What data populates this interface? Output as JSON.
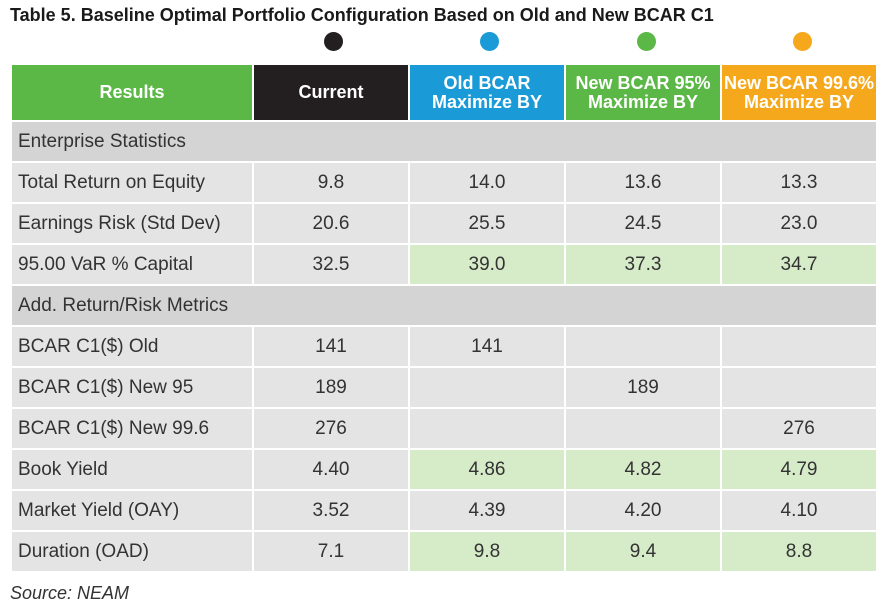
{
  "title": "Table 5. Baseline Optimal Portfolio Configuration Based on Old and New BCAR C1",
  "columns": [
    {
      "lines": [
        "Results"
      ],
      "color": "#5bb847"
    },
    {
      "lines": [
        "Current"
      ],
      "color": "#231f20",
      "dot": "#231f20"
    },
    {
      "lines": [
        "Old BCAR",
        "Maximize BY"
      ],
      "color": "#1a9ad6",
      "dot": "#1a9ad6"
    },
    {
      "lines": [
        "New BCAR 95%",
        "Maximize BY"
      ],
      "color": "#5bb847",
      "dot": "#5bb847"
    },
    {
      "lines": [
        "New BCAR 99.6%",
        "Maximize BY"
      ],
      "color": "#f6a81c",
      "dot": "#f6a81c"
    }
  ],
  "rows": [
    {
      "type": "section",
      "label": "Enterprise Statistics"
    },
    {
      "label": "Total Return on Equity",
      "values": [
        "9.8",
        "14.0",
        "13.6",
        "13.3"
      ],
      "highlight": false
    },
    {
      "label": "Earnings Risk (Std Dev)",
      "values": [
        "20.6",
        "25.5",
        "24.5",
        "23.0"
      ],
      "highlight": false
    },
    {
      "label": "95.00 VaR % Capital",
      "values": [
        "32.5",
        "39.0",
        "37.3",
        "34.7"
      ],
      "highlight": true
    },
    {
      "type": "section",
      "label": "Add. Return/Risk Metrics"
    },
    {
      "label": "BCAR C1($) Old",
      "values": [
        "141",
        "141",
        "",
        ""
      ],
      "highlight": false
    },
    {
      "label": "BCAR C1($) New 95",
      "values": [
        "189",
        "",
        "189",
        ""
      ],
      "highlight": false
    },
    {
      "label": "BCAR C1($) New 99.6",
      "values": [
        "276",
        "",
        "",
        "276"
      ],
      "highlight": false
    },
    {
      "label": "Book Yield",
      "values": [
        "4.40",
        "4.86",
        "4.82",
        "4.79"
      ],
      "highlight": true
    },
    {
      "label": "Market Yield (OAY)",
      "values": [
        "3.52",
        "4.39",
        "4.20",
        "4.10"
      ],
      "highlight": false
    },
    {
      "label": "Duration (OAD)",
      "values": [
        "7.1",
        "9.8",
        "9.4",
        "8.8"
      ],
      "highlight": true
    }
  ],
  "source": "Source: NEAM"
}
